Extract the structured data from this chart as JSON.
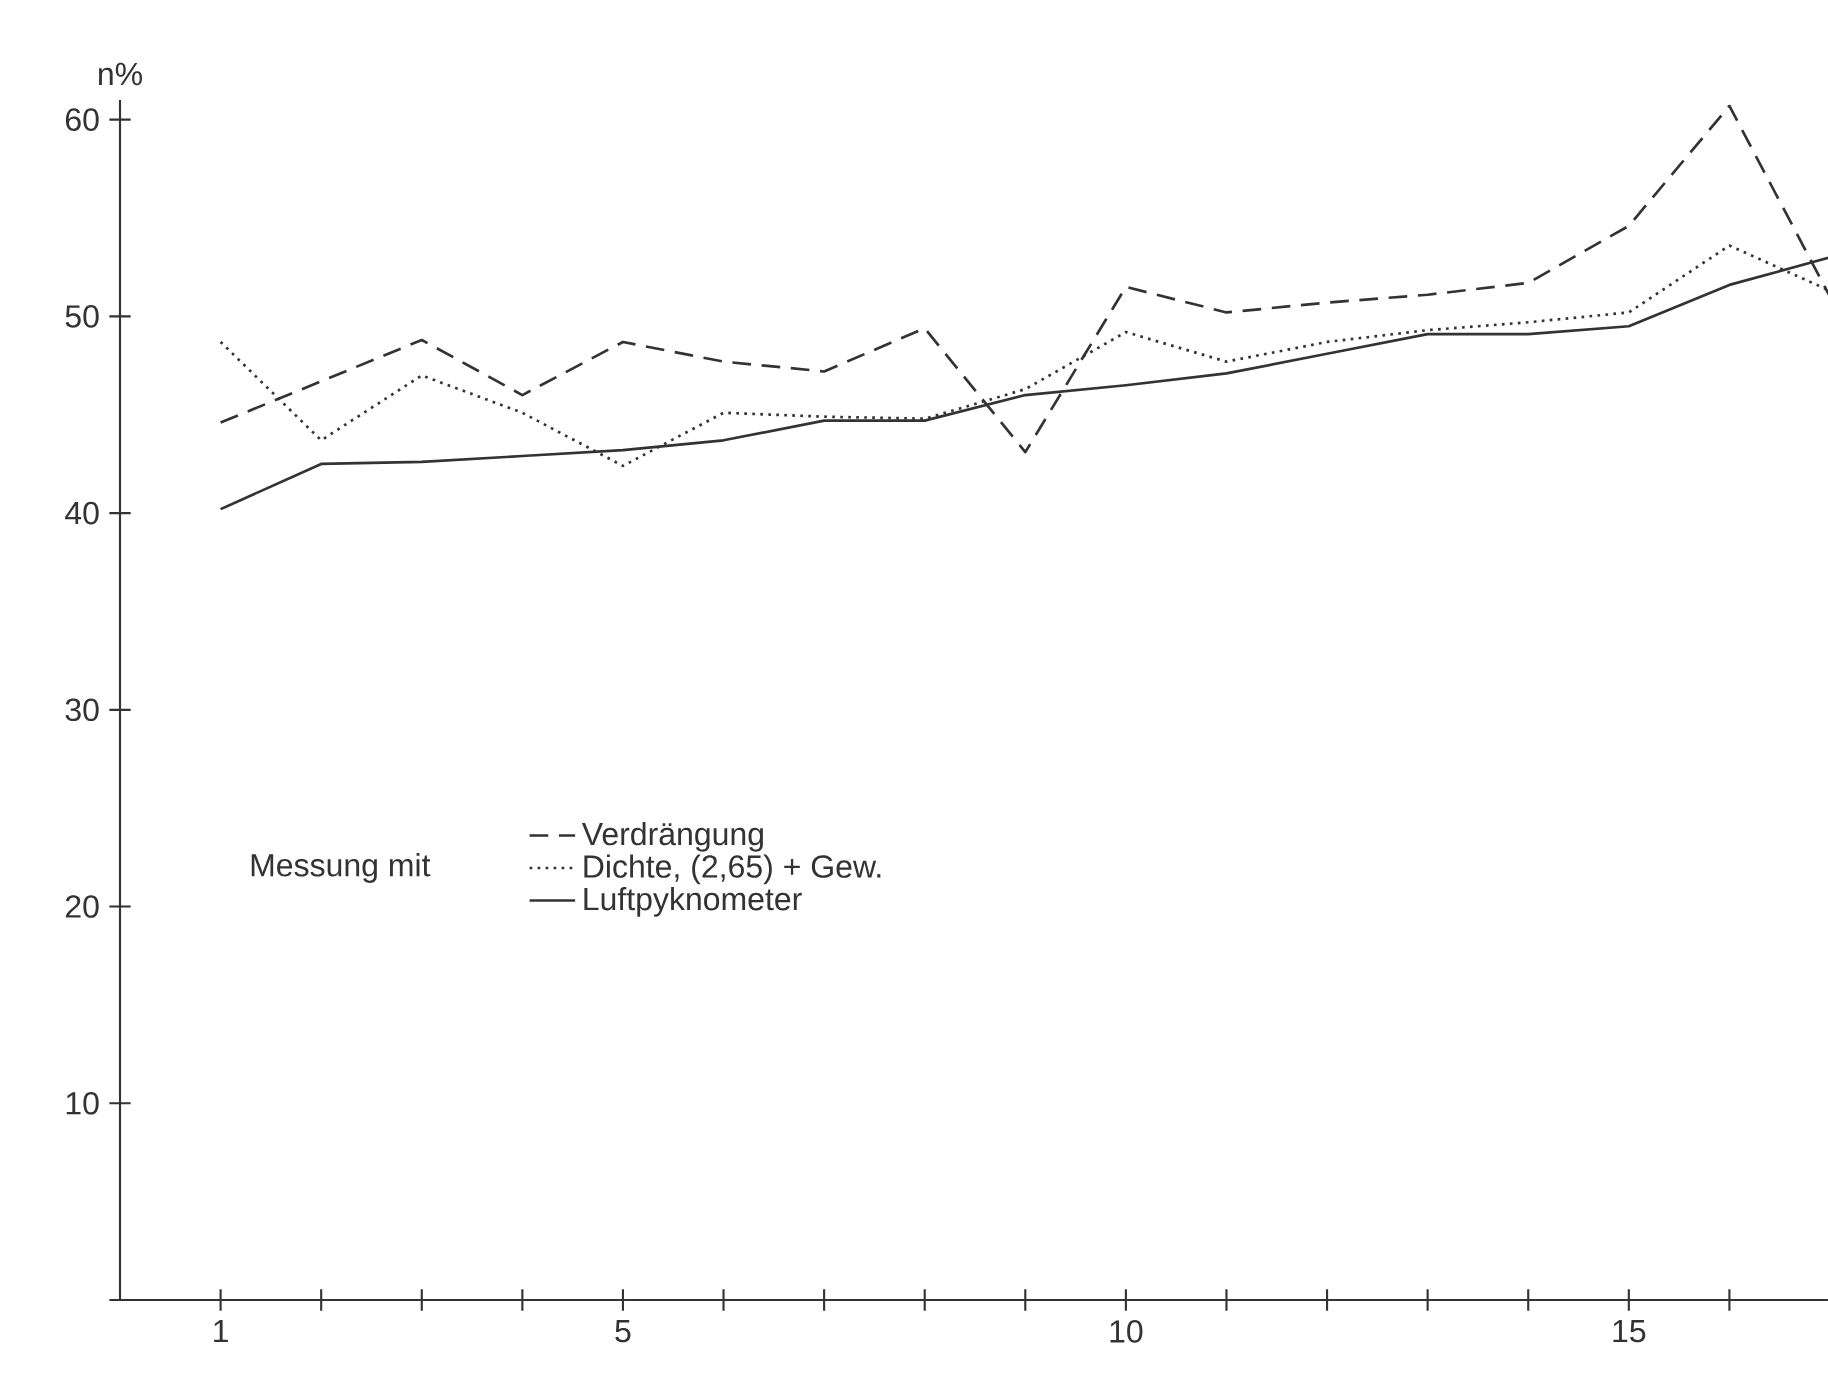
{
  "chart_data": {
    "type": "line",
    "ylabel": "n%",
    "legend_title": "Messung mit",
    "legend": "center",
    "x": [
      1,
      2,
      3,
      4,
      5,
      6,
      7,
      8,
      9,
      10,
      11,
      12,
      13,
      14,
      15,
      16,
      17
    ],
    "xlim": [
      0,
      17
    ],
    "ylim": [
      0,
      61
    ],
    "xticks": [
      {
        "value": 1,
        "label": "1"
      },
      {
        "value": 2,
        "label": null
      },
      {
        "value": 3,
        "label": null
      },
      {
        "value": 4,
        "label": null
      },
      {
        "value": 5,
        "label": "5"
      },
      {
        "value": 6,
        "label": null
      },
      {
        "value": 7,
        "label": null
      },
      {
        "value": 8,
        "label": null
      },
      {
        "value": 9,
        "label": null
      },
      {
        "value": 10,
        "label": "10"
      },
      {
        "value": 11,
        "label": null
      },
      {
        "value": 12,
        "label": null
      },
      {
        "value": 13,
        "label": null
      },
      {
        "value": 14,
        "label": null
      },
      {
        "value": 15,
        "label": "15"
      },
      {
        "value": 16,
        "label": null
      }
    ],
    "yticks": [
      {
        "value": 0,
        "label": null
      },
      10,
      20,
      30,
      40,
      50,
      60
    ],
    "series": [
      {
        "name": "Verdrängung",
        "color": "#333333",
        "line_style": "dashed",
        "values": [
          44.6,
          46.7,
          48.8,
          46.0,
          48.7,
          47.7,
          47.2,
          49.4,
          43.1,
          51.5,
          50.2,
          50.7,
          51.1,
          51.7,
          54.6,
          60.7,
          51.0
        ]
      },
      {
        "name": "Dichte, (2,65)  + Gew.",
        "color": "#333333",
        "line_style": "dotted",
        "values": [
          48.7,
          43.7,
          47.0,
          45.1,
          42.4,
          45.1,
          44.9,
          44.8,
          46.3,
          49.2,
          47.7,
          48.7,
          49.3,
          49.7,
          50.2,
          53.6,
          51.3
        ]
      },
      {
        "name": "Luftpyknometer",
        "color": "#333333",
        "line_style": "solid",
        "values": [
          40.2,
          42.5,
          42.6,
          42.9,
          43.2,
          43.7,
          44.7,
          44.7,
          46.0,
          46.5,
          47.1,
          48.1,
          49.1,
          49.1,
          49.5,
          51.6,
          53.0
        ]
      }
    ]
  }
}
